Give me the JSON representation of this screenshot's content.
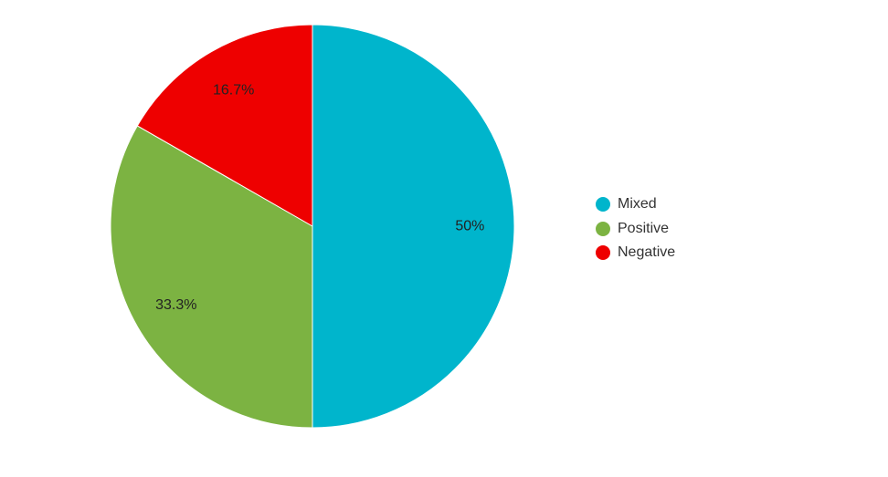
{
  "chart_data": {
    "type": "pie",
    "title": "",
    "categories": [
      "Mixed",
      "Positive",
      "Negative"
    ],
    "values": [
      50,
      33.3,
      16.7
    ],
    "labels": [
      "50%",
      "33.3%",
      "16.7%"
    ],
    "colors": [
      "#00b5cc",
      "#7cb342",
      "#ee0000"
    ],
    "legend": {
      "position": "right",
      "items": [
        "Mixed",
        "Positive",
        "Negative"
      ]
    },
    "start_angle_deg": 0,
    "direction": "clockwise"
  }
}
